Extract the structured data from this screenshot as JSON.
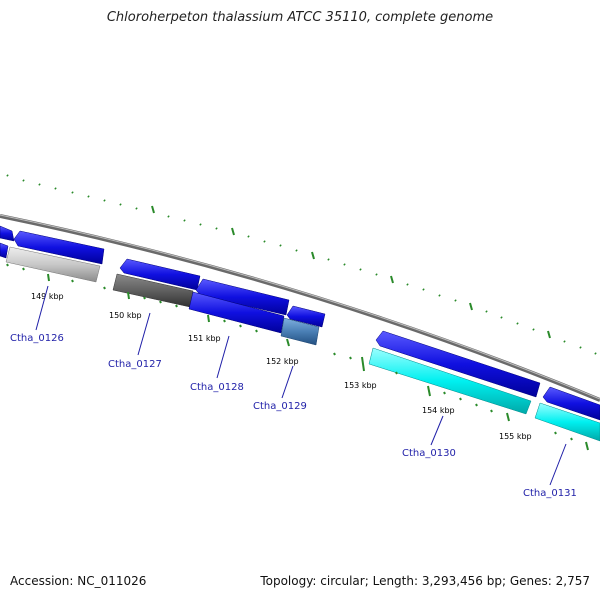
{
  "title": "Chloroherpeton thalassium ATCC 35110, complete genome",
  "accession_label": "Accession:",
  "accession": "NC_011026",
  "topology_label": "Topology:",
  "topology": "circular",
  "length_label": "Length:",
  "length": "3,293,456 bp",
  "genes_label": "Genes:",
  "genes": "2,757",
  "scale": {
    "labels": [
      "149 kbp",
      "150 kbp",
      "151 kbp",
      "152 kbp",
      "153 kbp",
      "154 kbp",
      "155 kbp"
    ]
  },
  "genes_list": [
    {
      "name": "Ctha_0126"
    },
    {
      "name": "Ctha_0127"
    },
    {
      "name": "Ctha_0128"
    },
    {
      "name": "Ctha_0129"
    },
    {
      "name": "Ctha_0130"
    },
    {
      "name": "Ctha_0131"
    }
  ],
  "colors": {
    "forward_blue": "#1010e0",
    "light_gray": "#c8c8c8",
    "dark_gray": "#606060",
    "steel_blue": "#4a7fb5",
    "cyan": "#00f0f0",
    "tick_green": "#2a8a2a",
    "backbone": "#808080",
    "label_blue": "#1f1fa8"
  }
}
